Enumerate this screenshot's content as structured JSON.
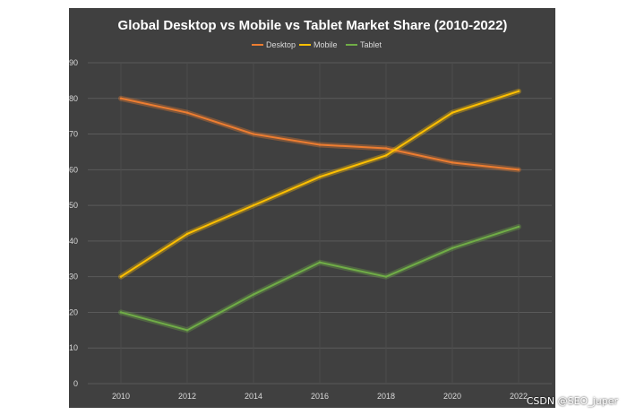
{
  "chart_data": {
    "type": "line",
    "title": "Global Desktop vs Mobile vs Tablet Market Share (2010-2022)",
    "xlabel": "",
    "ylabel": "",
    "x": [
      2010,
      2012,
      2014,
      2016,
      2018,
      2020,
      2022
    ],
    "x_tick_labels": [
      "2010",
      "2012",
      "2014",
      "2016",
      "2018",
      "2020",
      "2022"
    ],
    "ylim": [
      0,
      90
    ],
    "y_ticks": [
      0,
      10,
      20,
      30,
      40,
      50,
      60,
      70,
      80,
      90
    ],
    "grid": true,
    "legend_position": "top",
    "series": [
      {
        "name": "Desktop",
        "color": "#ed7d31",
        "values": [
          80,
          76,
          70,
          67,
          66,
          62,
          60
        ]
      },
      {
        "name": "Mobile",
        "color": "#ffc000",
        "values": [
          30,
          42,
          50,
          58,
          64,
          76,
          82
        ]
      },
      {
        "name": "Tablet",
        "color": "#70ad47",
        "values": [
          20,
          15,
          25,
          34,
          30,
          38,
          44
        ]
      }
    ]
  },
  "watermark": "CSDN @SEO_juper"
}
